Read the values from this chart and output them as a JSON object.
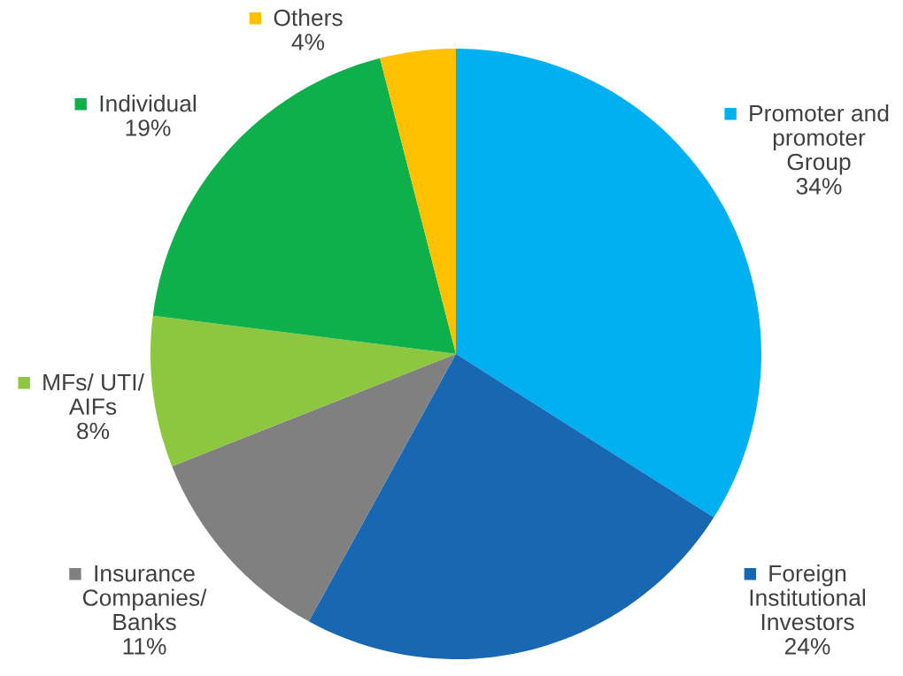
{
  "chart_data": {
    "type": "pie",
    "categories": [
      "Promoter and\npromoter\nGroup",
      "Foreign\nInstitutional\nInvestors",
      "Insurance\nCompanies/\nBanks",
      "MFs/ UTI/\nAIFs",
      "Individual",
      "Others"
    ],
    "values": [
      34,
      24,
      11,
      8,
      19,
      4
    ],
    "value_labels": [
      "34%",
      "24%",
      "11%",
      "8%",
      "19%",
      "4%"
    ],
    "legend": "right",
    "colors": [
      "#00b0f0",
      "#1767b3",
      "#808080",
      "#8dc63f",
      "#0db04b",
      "#ffc000"
    ]
  }
}
